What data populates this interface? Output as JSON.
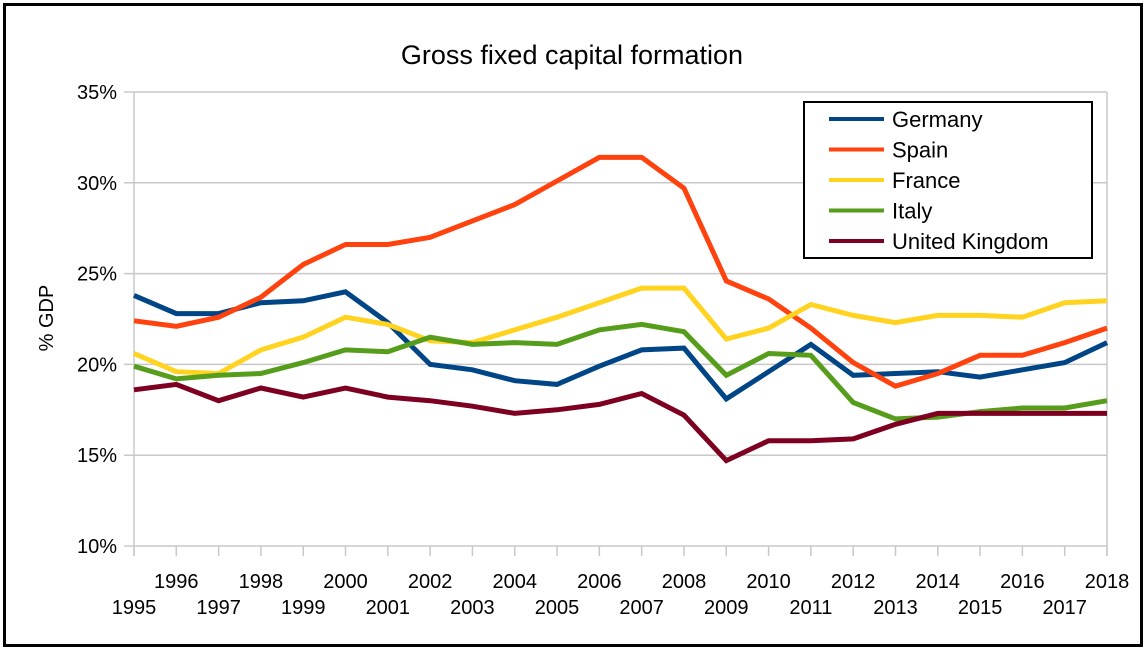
{
  "chart_data": {
    "type": "line",
    "title": "Gross fixed capital formation",
    "xlabel": "",
    "ylabel": "% GDP",
    "ylim": [
      10,
      35
    ],
    "yticks": [
      10,
      15,
      20,
      25,
      30,
      35
    ],
    "ytick_labels": [
      "10%",
      "15%",
      "20%",
      "25%",
      "30%",
      "35%"
    ],
    "grid": true,
    "legend_position": "top-right",
    "x": [
      1995,
      1996,
      1997,
      1998,
      1999,
      2000,
      2001,
      2002,
      2003,
      2004,
      2005,
      2006,
      2007,
      2008,
      2009,
      2010,
      2011,
      2012,
      2013,
      2014,
      2015,
      2016,
      2017,
      2018
    ],
    "x_tick_labels": [
      "1995",
      "1996",
      "1997",
      "1998",
      "1999",
      "2000",
      "2001",
      "2002",
      "2003",
      "2004",
      "2005",
      "2006",
      "2007",
      "2008",
      "2009",
      "2010",
      "2011",
      "2012",
      "2013",
      "2014",
      "2015",
      "2016",
      "2017",
      "2018"
    ],
    "series": [
      {
        "name": "Germany",
        "color": "#004586",
        "values": [
          23.8,
          22.8,
          22.8,
          23.4,
          23.5,
          24.0,
          22.3,
          20.0,
          19.7,
          19.1,
          18.9,
          19.9,
          20.8,
          20.9,
          18.1,
          19.6,
          21.1,
          19.4,
          19.5,
          19.6,
          19.3,
          19.7,
          20.1,
          21.2
        ]
      },
      {
        "name": "Spain",
        "color": "#ff420e",
        "values": [
          22.4,
          22.1,
          22.6,
          23.7,
          25.5,
          26.6,
          26.6,
          27.0,
          27.9,
          28.8,
          30.1,
          31.4,
          31.4,
          29.7,
          24.6,
          23.6,
          22.0,
          20.1,
          18.8,
          19.5,
          20.5,
          20.5,
          21.2,
          22.0
        ]
      },
      {
        "name": "France",
        "color": "#ffd320",
        "values": [
          20.6,
          19.6,
          19.5,
          20.8,
          21.5,
          22.6,
          22.2,
          21.3,
          21.2,
          21.9,
          22.6,
          23.4,
          24.2,
          24.2,
          21.4,
          22.0,
          23.3,
          22.7,
          22.3,
          22.7,
          22.7,
          22.6,
          23.4,
          23.5
        ]
      },
      {
        "name": "Italy",
        "color": "#579d1c",
        "values": [
          19.9,
          19.2,
          19.4,
          19.5,
          20.1,
          20.8,
          20.7,
          21.5,
          21.1,
          21.2,
          21.1,
          21.9,
          22.2,
          21.8,
          19.4,
          20.6,
          20.5,
          17.9,
          17.0,
          17.1,
          17.4,
          17.6,
          17.6,
          18.0
        ]
      },
      {
        "name": "United Kingdom",
        "color": "#7e0021",
        "values": [
          18.6,
          18.9,
          18.0,
          18.7,
          18.2,
          18.7,
          18.2,
          18.0,
          17.7,
          17.3,
          17.5,
          17.8,
          18.4,
          17.2,
          14.7,
          15.8,
          15.8,
          15.9,
          16.7,
          17.3,
          17.3,
          17.3,
          17.3,
          17.3
        ]
      }
    ]
  }
}
